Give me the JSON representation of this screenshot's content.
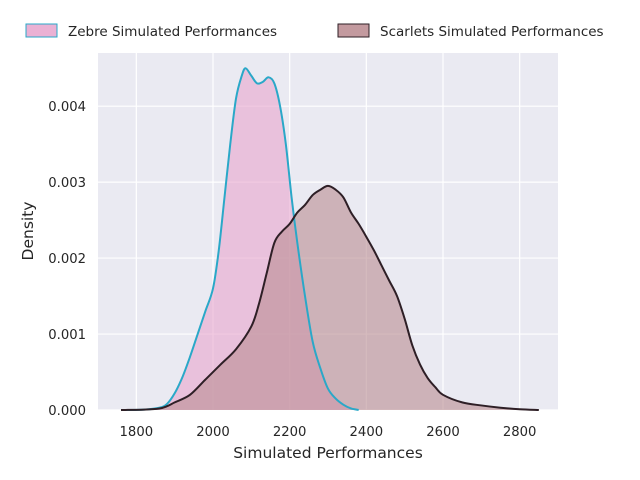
{
  "chart_data": {
    "type": "area",
    "title": "",
    "xlabel": "Simulated Performances",
    "ylabel": "Density",
    "xlim": [
      1700,
      2900
    ],
    "ylim": [
      0,
      0.0047
    ],
    "xticks": [
      1800,
      2000,
      2200,
      2400,
      2600,
      2800
    ],
    "xtick_labels": [
      "1800",
      "2000",
      "2200",
      "2400",
      "2600",
      "2800"
    ],
    "yticks": [
      0,
      0.001,
      0.002,
      0.003,
      0.004
    ],
    "ytick_labels": [
      "0.000",
      "0.001",
      "0.002",
      "0.003",
      "0.004"
    ],
    "grid": true,
    "legend_placement": "top, above plot",
    "series": [
      {
        "name": "Zebre Simulated Performances",
        "fill_color": "#e8a8cf",
        "line_color": "#2aa8c8",
        "x": [
          1770,
          1820,
          1860,
          1880,
          1900,
          1920,
          1940,
          1960,
          1980,
          2000,
          2015,
          2030,
          2045,
          2060,
          2075,
          2085,
          2100,
          2115,
          2130,
          2145,
          2160,
          2175,
          2190,
          2205,
          2220,
          2240,
          2260,
          2280,
          2300,
          2320,
          2340,
          2360,
          2380
        ],
        "y": [
          0,
          5e-06,
          3e-05,
          8e-05,
          0.00022,
          0.00043,
          0.0007,
          0.001,
          0.0013,
          0.0016,
          0.0021,
          0.0028,
          0.0035,
          0.0041,
          0.0044,
          0.0045,
          0.0044,
          0.0043,
          0.00432,
          0.00438,
          0.0043,
          0.004,
          0.0035,
          0.0028,
          0.0022,
          0.0015,
          0.0009,
          0.00055,
          0.00028,
          0.00015,
          7e-05,
          2e-05,
          0
        ]
      },
      {
        "name": "Scarlets Simulated Performances",
        "fill_color": "#bc8f95",
        "line_color": "#2e1f26",
        "x": [
          1760,
          1820,
          1860,
          1880,
          1900,
          1940,
          1980,
          2020,
          2060,
          2100,
          2120,
          2140,
          2160,
          2180,
          2200,
          2220,
          2240,
          2260,
          2280,
          2300,
          2320,
          2340,
          2360,
          2380,
          2400,
          2420,
          2440,
          2460,
          2480,
          2500,
          2520,
          2540,
          2560,
          2580,
          2600,
          2650,
          2700,
          2750,
          2800,
          2850
        ],
        "y": [
          0,
          5e-06,
          2e-05,
          5e-05,
          0.0001,
          0.0002,
          0.0004,
          0.0006,
          0.0008,
          0.0011,
          0.0014,
          0.0018,
          0.0022,
          0.00235,
          0.00245,
          0.0026,
          0.0027,
          0.00283,
          0.0029,
          0.00295,
          0.0029,
          0.0028,
          0.0026,
          0.00245,
          0.00228,
          0.0021,
          0.0019,
          0.0017,
          0.0015,
          0.0012,
          0.00085,
          0.0006,
          0.00042,
          0.0003,
          0.0002,
          0.0001,
          6e-05,
          3e-05,
          1e-05,
          0
        ]
      }
    ]
  }
}
